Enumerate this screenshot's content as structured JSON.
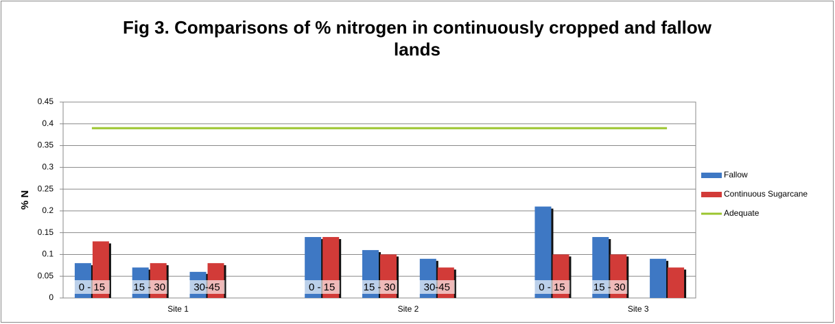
{
  "chart_data": {
    "type": "bar",
    "title": "Fig 3. Comparisons of % nitrogen in continuously cropped and fallow lands",
    "y_label": "% N",
    "categories": [
      "0 - 15",
      "15 - 30",
      "30-45",
      null,
      "0 - 15",
      "15 - 30",
      "30-45",
      null,
      "0 - 15",
      "15 - 30",
      null
    ],
    "groups": [
      "Site 1",
      "Site 2",
      "Site 3"
    ],
    "series": [
      {
        "name": "Fallow",
        "color": "#3e78c4",
        "values": [
          0.08,
          0.07,
          0.06,
          null,
          0.14,
          0.11,
          0.09,
          null,
          0.21,
          0.14,
          0.09
        ]
      },
      {
        "name": "Continuous Sugarcane",
        "color": "#d23b38",
        "values": [
          0.13,
          0.08,
          0.08,
          null,
          0.14,
          0.1,
          0.07,
          null,
          0.1,
          0.1,
          0.07
        ]
      },
      {
        "name": "Adequate",
        "type": "line",
        "color": "#9bc52e",
        "values": [
          0.39,
          0.39,
          0.39,
          0.39,
          0.39,
          0.39,
          0.39,
          0.39,
          0.39,
          0.39,
          0.39
        ]
      }
    ],
    "ylim": [
      0,
      0.45
    ],
    "yticks": [
      0,
      0.05,
      0.1,
      0.15,
      0.2,
      0.25,
      0.3,
      0.35,
      0.4,
      0.45
    ],
    "grid": true,
    "legend": "right"
  }
}
